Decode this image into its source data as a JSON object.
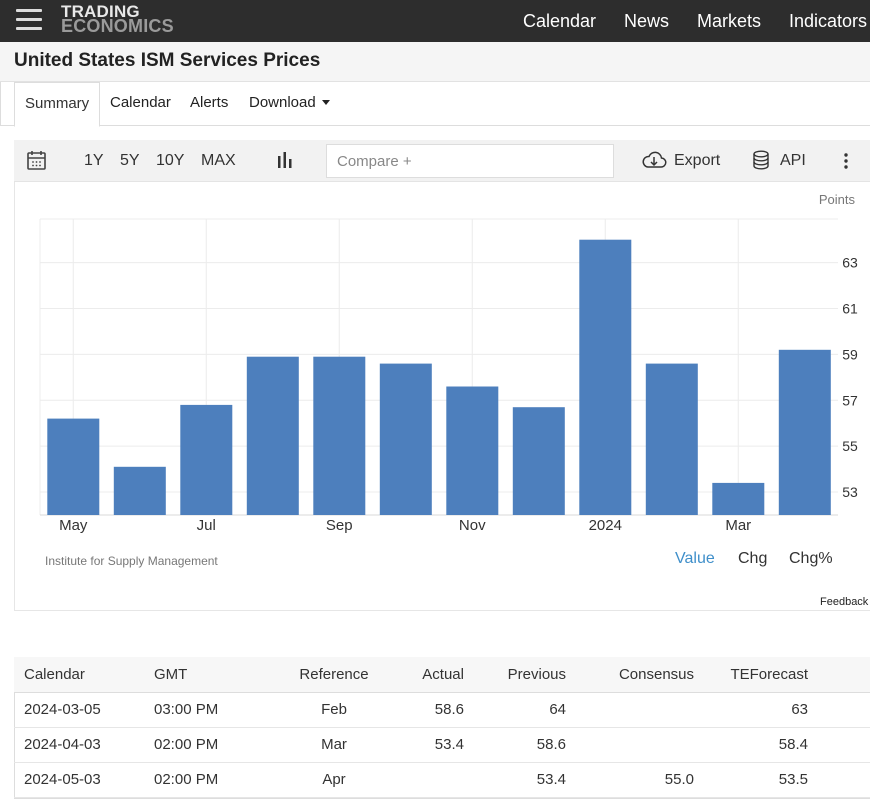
{
  "header": {
    "logo_line1": "TRADING",
    "logo_line2": "ECONOMICS",
    "nav": [
      "Calendar",
      "News",
      "Markets",
      "Indicators"
    ]
  },
  "page": {
    "title": "United States ISM Services Prices"
  },
  "tabs": {
    "summary": "Summary",
    "calendar": "Calendar",
    "alerts": "Alerts",
    "download": "Download"
  },
  "toolbar": {
    "ranges": [
      "1Y",
      "5Y",
      "10Y",
      "MAX"
    ],
    "compare_placeholder": "Compare +",
    "export": "Export",
    "api": "API"
  },
  "chart": {
    "unit_label": "Points",
    "source": "Institute for Supply Management",
    "value_tabs": [
      "Value",
      "Chg",
      "Chg%"
    ],
    "feedback": "Feedback",
    "bar_color": "#4d7fbd",
    "active_tab_color": "#3f8fca"
  },
  "chart_data": {
    "type": "bar",
    "categories": [
      "2023-05",
      "2023-06",
      "2023-07",
      "2023-08",
      "2023-09",
      "2023-10",
      "2023-11",
      "2023-12",
      "2024-01",
      "2024-02",
      "2024-03",
      "2024-04"
    ],
    "x_tick_labels": [
      "May",
      "Jul",
      "Sep",
      "Nov",
      "2024",
      "Mar"
    ],
    "values": [
      56.2,
      54.1,
      56.8,
      58.9,
      58.9,
      58.6,
      57.6,
      56.7,
      64,
      58.6,
      53.4,
      59.2
    ],
    "ylim": [
      52,
      64.9
    ],
    "y_ticks": [
      53,
      55,
      57,
      59,
      61,
      63
    ],
    "grid": true
  },
  "calendar_table": {
    "columns": [
      "Calendar",
      "GMT",
      "Reference",
      "Actual",
      "Previous",
      "Consensus",
      "TEForecast"
    ],
    "rows": [
      [
        "2024-03-05",
        "03:00 PM",
        "Feb",
        "58.6",
        "64",
        "",
        "63"
      ],
      [
        "2024-04-03",
        "02:00 PM",
        "Mar",
        "53.4",
        "58.6",
        "",
        "58.4"
      ],
      [
        "2024-05-03",
        "02:00 PM",
        "Apr",
        "",
        "53.4",
        "55.0",
        "53.5"
      ]
    ]
  }
}
